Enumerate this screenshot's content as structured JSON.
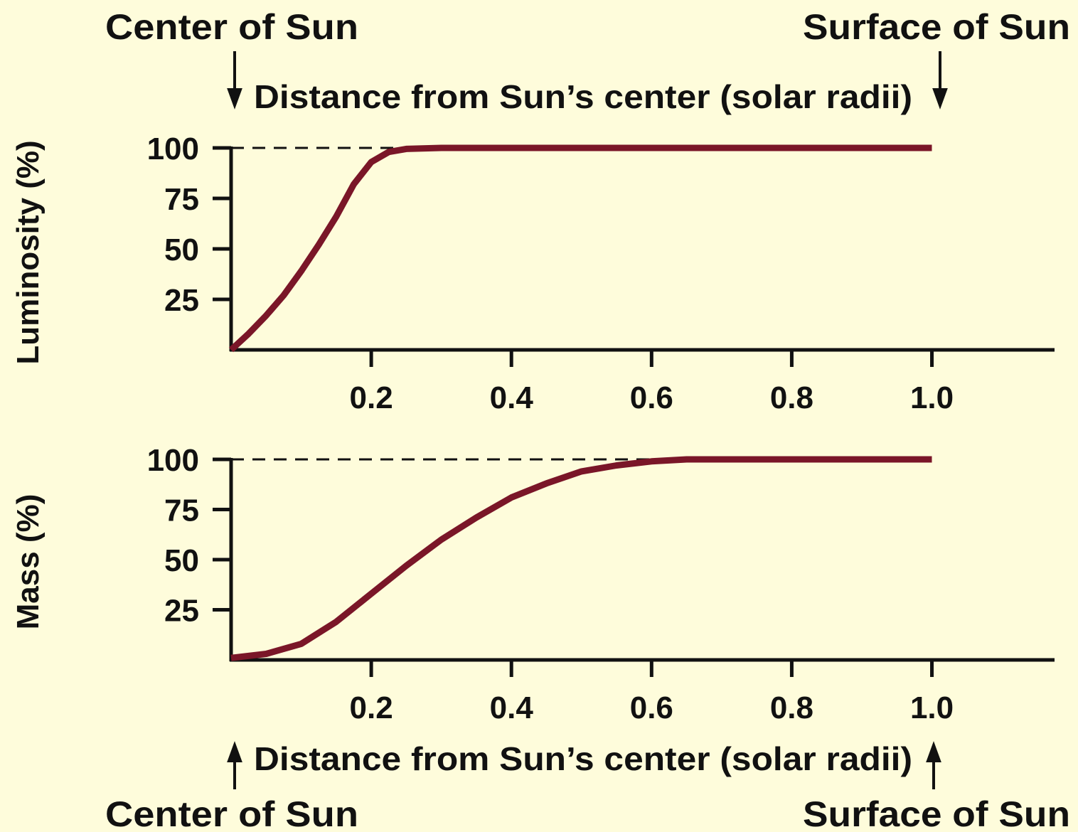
{
  "chart_data": [
    {
      "type": "line",
      "ylabel": "Luminosity (%)",
      "xlabel": "Distance from Sun’s center (solar radii)",
      "annotations": [
        "Center of Sun",
        "Surface of Sun"
      ],
      "x": [
        0,
        0.025,
        0.05,
        0.075,
        0.1,
        0.125,
        0.15,
        0.175,
        0.2,
        0.225,
        0.25,
        0.3,
        0.4,
        0.6,
        0.8,
        1.0
      ],
      "values": [
        0,
        8,
        17,
        27,
        39,
        52,
        66,
        82,
        93,
        98,
        99.5,
        100,
        100,
        100,
        100,
        100
      ],
      "color": "#7a1628",
      "reference_line": 100,
      "xlim": [
        0,
        1.175
      ],
      "ylim": [
        0,
        100
      ],
      "xticks": [
        0.2,
        0.4,
        0.6,
        0.8,
        {
          "value": 1,
          "label": "1.0"
        }
      ],
      "yticks": [
        25,
        50,
        75,
        100
      ]
    },
    {
      "type": "line",
      "ylabel": "Mass (%)",
      "xlabel": "Distance from Sun’s center (solar radii)",
      "annotations": [
        "Center of Sun",
        "Surface of Sun"
      ],
      "x": [
        0,
        0.05,
        0.1,
        0.15,
        0.2,
        0.25,
        0.3,
        0.35,
        0.4,
        0.45,
        0.5,
        0.55,
        0.6,
        0.65,
        0.7,
        0.8,
        1.0
      ],
      "values": [
        1,
        3,
        8,
        19,
        33,
        47,
        60,
        71,
        81,
        88,
        94,
        97,
        99,
        100,
        100,
        100,
        100
      ],
      "color": "#7a1628",
      "reference_line": 100,
      "xlim": [
        0,
        1.175
      ],
      "ylim": [
        0,
        100
      ],
      "xticks": [
        0.2,
        0.4,
        0.6,
        0.8,
        {
          "value": 1,
          "label": "1.0"
        }
      ],
      "yticks": [
        25,
        50,
        75,
        100
      ]
    }
  ]
}
